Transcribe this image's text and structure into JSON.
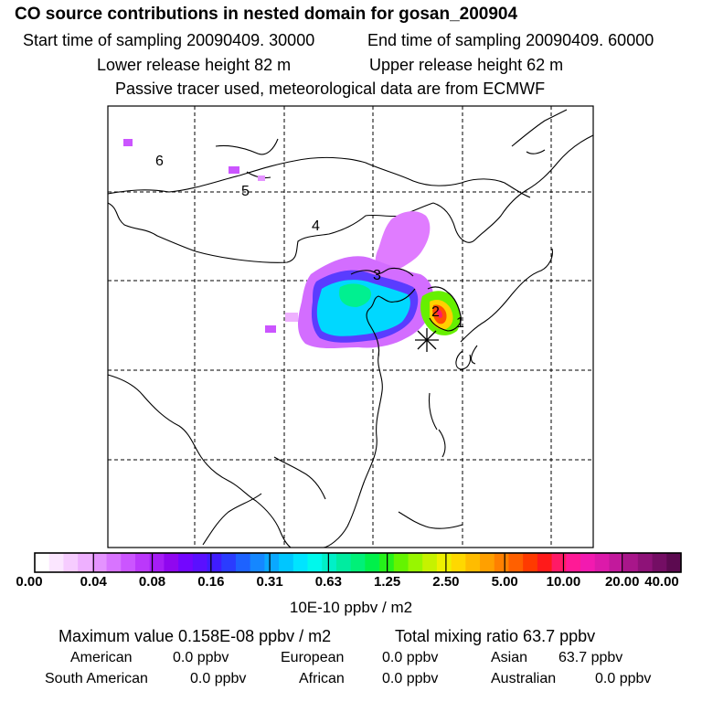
{
  "header": {
    "title": "CO  source contributions in nested domain for gosan_200904",
    "start_label": "Start time of sampling 20090409. 30000",
    "end_label": "End time of sampling 20090409. 60000",
    "lower_label": "Lower release height   82 m",
    "upper_label": "Upper release height   62 m",
    "tracer_note": "Passive tracer used, meteorological data are from ECMWF"
  },
  "map": {
    "region_labels": [
      "1",
      "2",
      "3",
      "4",
      "5",
      "6"
    ],
    "receptor_marker": "asterisk-icon"
  },
  "colorbar": {
    "ticks": [
      "0.00",
      "0.04",
      "0.08",
      "0.16",
      "0.31",
      "0.63",
      "1.25",
      "2.50",
      "5.00",
      "10.00",
      "20.00",
      "40.00"
    ],
    "colors": [
      "#ffffff",
      "#fbe6ff",
      "#f6ccff",
      "#eeb0ff",
      "#e493ff",
      "#d874ff",
      "#cb55ff",
      "#bb38fb",
      "#a61df5",
      "#9007ef",
      "#7306ff",
      "#5a10ff",
      "#3f1cff",
      "#2a3cff",
      "#1d62ff",
      "#1587ff",
      "#0aa8ff",
      "#00c6ff",
      "#00e4ff",
      "#00f8ec",
      "#00f0c8",
      "#00eca0",
      "#00f078",
      "#00f04a",
      "#26f21a",
      "#64f400",
      "#98f600",
      "#c6f200",
      "#eef000",
      "#ffd800",
      "#ffbc00",
      "#ffa000",
      "#ff8000",
      "#ff6000",
      "#ff3a00",
      "#ff1a1a",
      "#ff1a66",
      "#ff1a96",
      "#f21ab0",
      "#dc1aaa",
      "#c2199c",
      "#a8168a",
      "#8e1278",
      "#740e64",
      "#5c0a50"
    ],
    "units": "10E-10 ppbv / m2"
  },
  "stats": {
    "max_label": "Maximum value  0.158E-08 ppbv / m2",
    "total_label": "Total mixing ratio       63.7 ppbv",
    "american_label": "American",
    "american_value": "0.0 ppbv",
    "european_label": "European",
    "european_value": "0.0 ppbv",
    "asian_label": "Asian",
    "asian_value": "63.7 ppbv",
    "south_american_label": "South American",
    "south_american_value": "0.0 ppbv",
    "african_label": "African",
    "african_value": "0.0 ppbv",
    "australian_label": "Australian",
    "australian_value": "0.0 ppbv"
  }
}
